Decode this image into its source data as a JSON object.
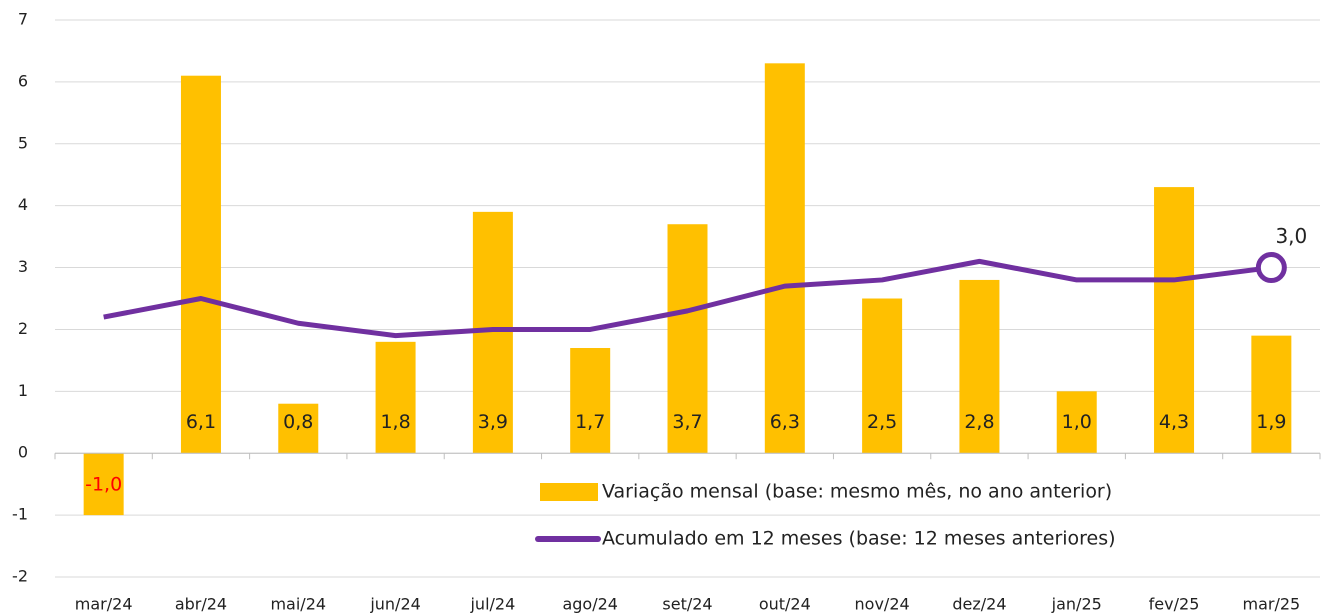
{
  "chart_data": {
    "type": "bar",
    "categories": [
      "mar/24",
      "abr/24",
      "mai/24",
      "jun/24",
      "jul/24",
      "ago/24",
      "set/24",
      "out/24",
      "nov/24",
      "dez/24",
      "jan/25",
      "fev/25",
      "mar/25"
    ],
    "series": [
      {
        "name": "Variação mensal (base: mesmo mês, no ano anterior)",
        "type": "bar",
        "color": "#FFC000",
        "values": [
          -1.0,
          6.1,
          0.8,
          1.8,
          3.9,
          1.7,
          3.7,
          6.3,
          2.5,
          2.8,
          1.0,
          4.3,
          1.9
        ],
        "value_labels": [
          "-1,0",
          "6,1",
          "0,8",
          "1,8",
          "3,9",
          "1,7",
          "3,7",
          "6,3",
          "2,5",
          "2,8",
          "1,0",
          "4,3",
          "1,9"
        ],
        "negative_label_color": "#FF0000"
      },
      {
        "name": "Acumulado em 12 meses (base: 12 meses anteriores)",
        "type": "line",
        "color": "#7030A0",
        "values": [
          2.2,
          2.5,
          2.1,
          1.9,
          2.0,
          2.0,
          2.3,
          2.7,
          2.8,
          3.1,
          2.8,
          2.8,
          3.0
        ],
        "value_labels": [
          null,
          null,
          null,
          null,
          null,
          null,
          null,
          null,
          null,
          null,
          null,
          null,
          "3,0"
        ]
      }
    ],
    "ylim": [
      -2,
      7
    ],
    "yticks": [
      -2,
      -1,
      0,
      1,
      2,
      3,
      4,
      5,
      6,
      7
    ],
    "grid": true,
    "legend": "lower right"
  }
}
